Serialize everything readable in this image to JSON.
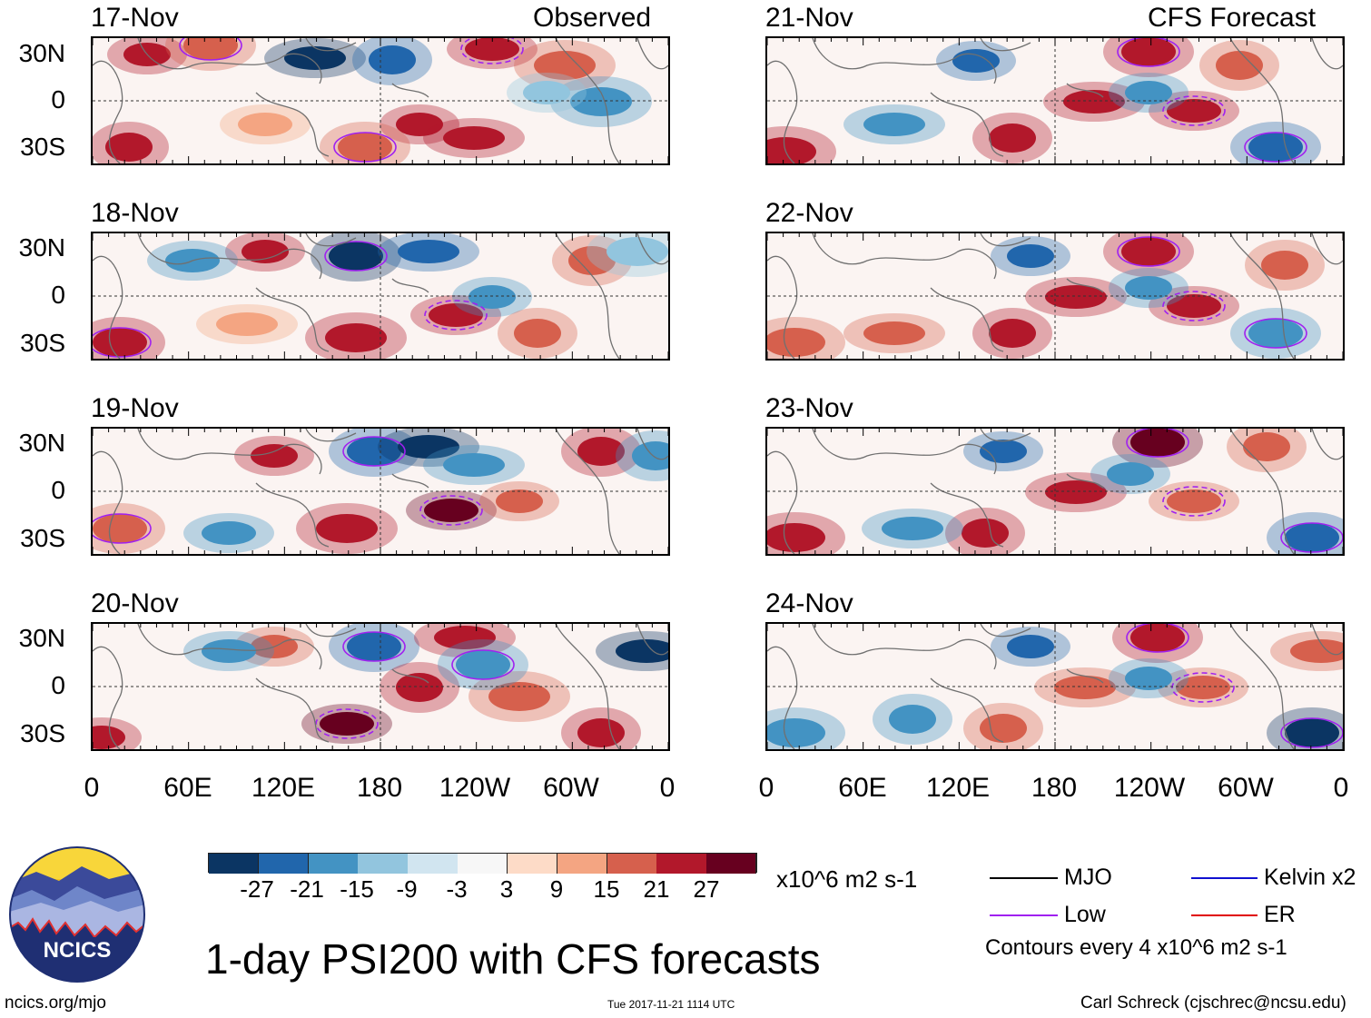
{
  "panels": {
    "left_header": "Observed",
    "right_header": "CFS Forecast",
    "left_dates": [
      "17-Nov",
      "18-Nov",
      "19-Nov",
      "20-Nov"
    ],
    "right_dates": [
      "21-Nov",
      "22-Nov",
      "23-Nov",
      "24-Nov"
    ]
  },
  "axes": {
    "lat_labels": [
      "30N",
      "0",
      "30S"
    ],
    "lon_labels": [
      "0",
      "60E",
      "120E",
      "180",
      "120W",
      "60W",
      "0"
    ]
  },
  "colorbar": {
    "labels": [
      "-27",
      "-21",
      "-15",
      "-9",
      "-3",
      "3",
      "9",
      "15",
      "21",
      "27"
    ],
    "units": "x10^6 m2 s-1",
    "colors": [
      "#0b3563",
      "#2166ac",
      "#4393c3",
      "#92c5de",
      "#d1e5f0",
      "#f7f7f7",
      "#fddbc7",
      "#f4a582",
      "#d6604d",
      "#b2182b",
      "#67001f"
    ]
  },
  "legend": {
    "items": [
      {
        "label": "MJO",
        "color": "#000000"
      },
      {
        "label": "Kelvin x2",
        "color": "#1010d0"
      },
      {
        "label": "Low",
        "color": "#a020f0"
      },
      {
        "label": "ER",
        "color": "#e00000"
      }
    ],
    "contours_note": "Contours every 4 x10^6 m2 s-1"
  },
  "footer": {
    "title": "1-day PSI200 with CFS forecasts",
    "site": "ncics.org/mjo",
    "timestamp": "Tue 2017-11-21 1114 UTC",
    "author": "Carl Schreck (cjschrec@ncsu.edu)",
    "logo_text": "NCICS"
  }
}
